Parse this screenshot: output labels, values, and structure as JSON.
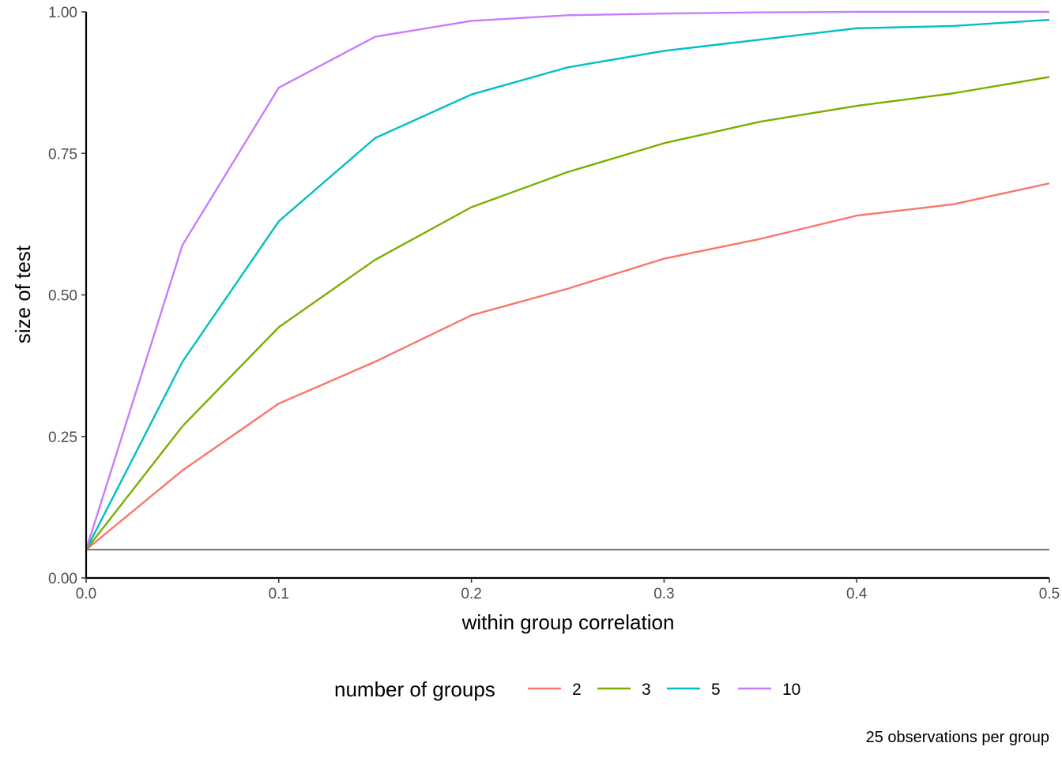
{
  "chart_data": {
    "type": "line",
    "xlabel": "within group correlation",
    "ylabel": "size of test",
    "caption": "25 observations per group",
    "xlim": [
      0,
      0.5
    ],
    "ylim": [
      0,
      1
    ],
    "x_ticks": [
      "0.0",
      "0.1",
      "0.2",
      "0.3",
      "0.4",
      "0.5"
    ],
    "y_ticks": [
      "0.00",
      "0.25",
      "0.50",
      "0.75",
      "1.00"
    ],
    "grid": false,
    "legend": {
      "title": "number of groups",
      "placement": "bottom"
    },
    "reference_line": {
      "y": 0.05,
      "color": "#808080"
    },
    "x": [
      0,
      0.05,
      0.1,
      0.15,
      0.2,
      0.25,
      0.3,
      0.35,
      0.4,
      0.45,
      0.5
    ],
    "series": [
      {
        "name": "2",
        "color": "#F8766D",
        "values": [
          0.05,
          0.19,
          0.308,
          0.382,
          0.464,
          0.511,
          0.564,
          0.599,
          0.64,
          0.66,
          0.697
        ]
      },
      {
        "name": "3",
        "color": "#7CAE00",
        "values": [
          0.05,
          0.268,
          0.443,
          0.562,
          0.655,
          0.717,
          0.768,
          0.806,
          0.834,
          0.856,
          0.885
        ]
      },
      {
        "name": "5",
        "color": "#00BFC4",
        "values": [
          0.05,
          0.382,
          0.63,
          0.777,
          0.854,
          0.902,
          0.931,
          0.951,
          0.971,
          0.975,
          0.986
        ]
      },
      {
        "name": "10",
        "color": "#C77CFF",
        "values": [
          0.05,
          0.588,
          0.866,
          0.956,
          0.984,
          0.994,
          0.997,
          0.999,
          1.0,
          1.0,
          1.0
        ]
      }
    ]
  }
}
